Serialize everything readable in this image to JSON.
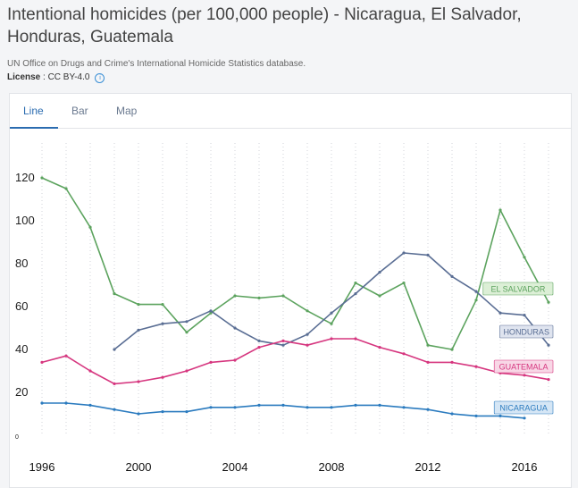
{
  "page": {
    "title": "Intentional homicides (per 100,000 people) - Nicaragua, El Salvador, Honduras, Guatemala",
    "source": "UN Office on Drugs and Crime's International Homicide Statistics database.",
    "license_label": "License",
    "license_value": " : CC BY-4.0",
    "info_icon": "i"
  },
  "tabs": [
    {
      "label": "Line",
      "active": true
    },
    {
      "label": "Bar",
      "active": false
    },
    {
      "label": "Map",
      "active": false
    }
  ],
  "chart_data": {
    "type": "line",
    "title": "Intentional homicides (per 100,000 people)",
    "xlabel": "",
    "ylabel": "",
    "xlim": [
      1996,
      2017
    ],
    "ylim": [
      0,
      125
    ],
    "y_ticks": [
      0,
      20,
      40,
      60,
      80,
      100,
      120
    ],
    "x_ticks": [
      1996,
      2000,
      2004,
      2008,
      2012,
      2016
    ],
    "grid": "vertical dotted",
    "legend": "inline labels at series ends",
    "series": [
      {
        "name": "EL SALVADOR",
        "color": "#5ca35e",
        "x": [
          1996,
          1997,
          1998,
          1999,
          2000,
          2001,
          2002,
          2003,
          2004,
          2005,
          2006,
          2007,
          2008,
          2009,
          2010,
          2011,
          2012,
          2013,
          2014,
          2015,
          2016,
          2017
        ],
        "values": [
          120,
          115,
          97,
          66,
          61,
          61,
          48,
          57,
          65,
          64,
          65,
          58,
          52,
          71,
          65,
          71,
          42,
          40,
          63,
          105,
          83,
          62
        ]
      },
      {
        "name": "HONDURAS",
        "color": "#5a6e94",
        "x": [
          1999,
          2000,
          2001,
          2002,
          2003,
          2004,
          2005,
          2006,
          2007,
          2008,
          2009,
          2010,
          2011,
          2012,
          2013,
          2014,
          2015,
          2016,
          2017
        ],
        "values": [
          40,
          49,
          52,
          53,
          58,
          50,
          44,
          42,
          47,
          57,
          66,
          76,
          85,
          84,
          74,
          67,
          57,
          56,
          42
        ]
      },
      {
        "name": "GUATEMALA",
        "color": "#d6367f",
        "x": [
          1996,
          1997,
          1998,
          1999,
          2000,
          2001,
          2002,
          2003,
          2004,
          2005,
          2006,
          2007,
          2008,
          2009,
          2010,
          2011,
          2012,
          2013,
          2014,
          2015,
          2016,
          2017
        ],
        "values": [
          34,
          37,
          30,
          24,
          25,
          27,
          30,
          34,
          35,
          41,
          44,
          42,
          45,
          45,
          41,
          38,
          34,
          34,
          32,
          29,
          28,
          26
        ]
      },
      {
        "name": "NICARAGUA",
        "color": "#2b7bbf",
        "x": [
          1996,
          1997,
          1998,
          1999,
          2000,
          2001,
          2002,
          2003,
          2004,
          2005,
          2006,
          2007,
          2008,
          2009,
          2010,
          2011,
          2012,
          2013,
          2014,
          2015,
          2016
        ],
        "values": [
          15,
          15,
          14,
          12,
          10,
          11,
          11,
          13,
          13,
          14,
          14,
          13,
          13,
          14,
          14,
          13,
          12,
          10,
          9,
          9,
          8
        ]
      }
    ]
  }
}
